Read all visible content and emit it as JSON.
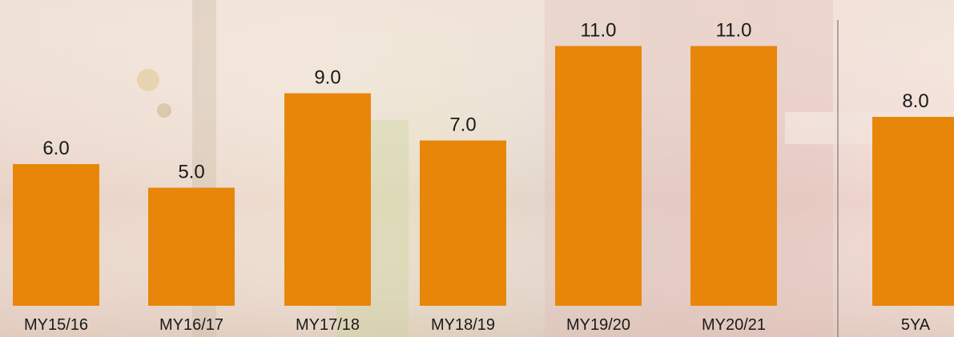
{
  "chart_data": {
    "type": "bar",
    "categories": [
      "MY15/16",
      "MY16/17",
      "MY17/18",
      "MY18/19",
      "MY19/20",
      "MY20/21",
      "5YA"
    ],
    "values": [
      6,
      5,
      9,
      7,
      11,
      11,
      8
    ],
    "value_labels": [
      "6.0",
      "5.0",
      "9.0",
      "7.0",
      "11.0",
      "11.0",
      "8.0"
    ],
    "color": "#e8860a"
  }
}
